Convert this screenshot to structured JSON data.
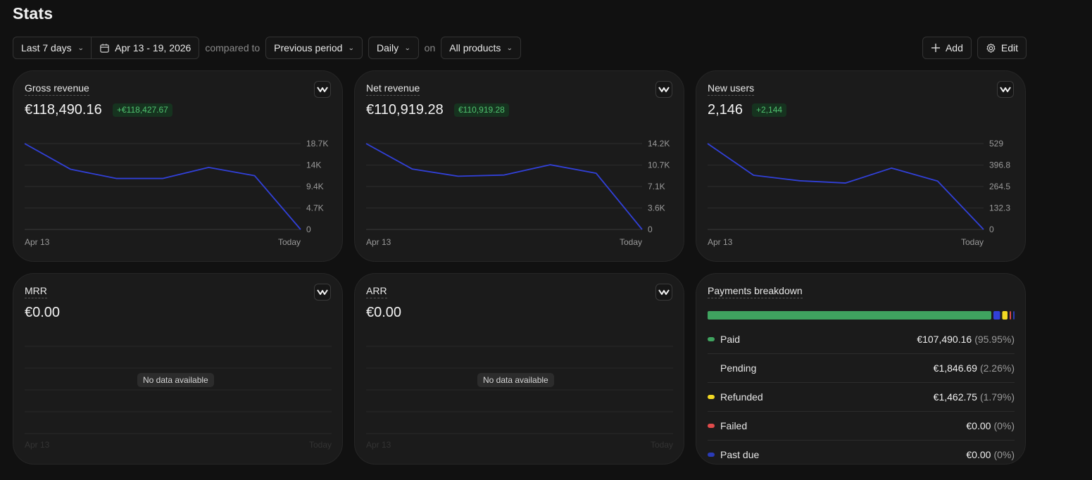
{
  "page": {
    "title": "Stats"
  },
  "toolbar": {
    "range_label": "Last 7 days",
    "date_range": "Apr 13 - 19, 2026",
    "compared_to_text": "compared to",
    "compare_label": "Previous period",
    "interval_label": "Daily",
    "on_text": "on",
    "products_label": "All products",
    "add_label": "Add",
    "edit_label": "Edit"
  },
  "colors": {
    "line": "#3140d8",
    "positive": "#4fc36f",
    "paid": "#3fa35f",
    "pending": "#3140d8",
    "refunded": "#f2d823",
    "failed": "#e04b4b",
    "past_due": "#2a3bb8"
  },
  "cards": [
    {
      "title": "Gross revenue",
      "value": "€118,490.16",
      "delta": "+€118,427.67"
    },
    {
      "title": "Net revenue",
      "value": "€110,919.28",
      "delta": "€110,919.28"
    },
    {
      "title": "New users",
      "value": "2,146",
      "delta": "+2,144"
    },
    {
      "title": "MRR",
      "value": "€0.00",
      "no_data": "No data available",
      "x_start": "Apr 13",
      "x_end": "Today"
    },
    {
      "title": "ARR",
      "value": "€0.00",
      "no_data": "No data available",
      "x_start": "Apr 13",
      "x_end": "Today"
    }
  ],
  "chart_data": [
    {
      "type": "line",
      "title": "Gross revenue",
      "x": [
        "Apr 13",
        "Apr 14",
        "Apr 15",
        "Apr 16",
        "Apr 17",
        "Apr 18",
        "Apr 19"
      ],
      "x_tick_labels": [
        "Apr 13",
        "Today"
      ],
      "y_ticks": [
        "18.7K",
        "14K",
        "9.4K",
        "4.7K",
        "0"
      ],
      "ylim": [
        0,
        18700
      ],
      "values": [
        18700,
        13100,
        11100,
        11100,
        13500,
        11700,
        0
      ],
      "grid": true
    },
    {
      "type": "line",
      "title": "Net revenue",
      "x": [
        "Apr 13",
        "Apr 14",
        "Apr 15",
        "Apr 16",
        "Apr 17",
        "Apr 18",
        "Apr 19"
      ],
      "x_tick_labels": [
        "Apr 13",
        "Today"
      ],
      "y_ticks": [
        "14.2K",
        "10.7K",
        "7.1K",
        "3.6K",
        "0"
      ],
      "ylim": [
        0,
        14200
      ],
      "values": [
        14200,
        10000,
        8800,
        9000,
        10700,
        9300,
        0
      ],
      "grid": true
    },
    {
      "type": "line",
      "title": "New users",
      "x": [
        "Apr 13",
        "Apr 14",
        "Apr 15",
        "Apr 16",
        "Apr 17",
        "Apr 18",
        "Apr 19"
      ],
      "x_tick_labels": [
        "Apr 13",
        "Today"
      ],
      "y_ticks": [
        "529",
        "396.8",
        "264.5",
        "132.3",
        "0"
      ],
      "ylim": [
        0,
        529
      ],
      "values": [
        529,
        334,
        300,
        286,
        378,
        298,
        0
      ],
      "grid": true
    }
  ],
  "payments": {
    "title": "Payments breakdown",
    "rows": [
      {
        "key": "paid",
        "name": "Paid",
        "amount": "€107,490.16",
        "pct": "(95.95%)",
        "share": 0.9595,
        "dot": "#3fa35f"
      },
      {
        "key": "pending",
        "name": "Pending",
        "amount": "€1,846.69",
        "pct": "(2.26%)",
        "share": 0.0226,
        "dot": ""
      },
      {
        "key": "refunded",
        "name": "Refunded",
        "amount": "€1,462.75",
        "pct": "(1.79%)",
        "share": 0.0179,
        "dot": "#f2d823"
      },
      {
        "key": "failed",
        "name": "Failed",
        "amount": "€0.00",
        "pct": "(0%)",
        "share": 0,
        "dot": "#e04b4b"
      },
      {
        "key": "past_due",
        "name": "Past due",
        "amount": "€0.00",
        "pct": "(0%)",
        "share": 0,
        "dot": "#2a3bb8"
      }
    ]
  }
}
